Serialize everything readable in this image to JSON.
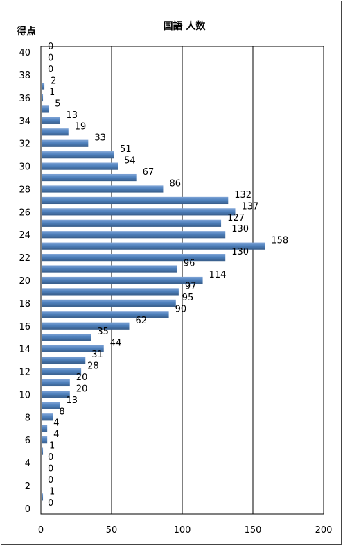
{
  "chart_data": {
    "type": "bar",
    "orientation": "horizontal",
    "title": "国語 人数",
    "ylabel": "得点",
    "xlabel": "",
    "xlim": [
      0,
      200
    ],
    "x_ticks": [
      0,
      50,
      100,
      150,
      200
    ],
    "y_ticks": [
      0,
      2,
      4,
      6,
      8,
      10,
      12,
      14,
      16,
      18,
      20,
      22,
      24,
      26,
      28,
      30,
      32,
      34,
      36,
      38,
      40
    ],
    "grid": "vertical",
    "legend": "none",
    "bar_color": "#4f81bd",
    "categories": [
      0,
      1,
      2,
      3,
      4,
      5,
      6,
      7,
      8,
      9,
      10,
      11,
      12,
      13,
      14,
      15,
      16,
      17,
      18,
      19,
      20,
      21,
      22,
      23,
      24,
      25,
      26,
      27,
      28,
      29,
      30,
      31,
      32,
      33,
      34,
      35,
      36,
      37,
      38,
      39,
      40
    ],
    "values": [
      0,
      1,
      0,
      0,
      0,
      1,
      4,
      4,
      8,
      13,
      20,
      20,
      28,
      31,
      44,
      35,
      62,
      90,
      95,
      97,
      114,
      96,
      130,
      158,
      130,
      127,
      137,
      132,
      86,
      67,
      54,
      51,
      33,
      19,
      13,
      5,
      1,
      2,
      0,
      0,
      0
    ]
  }
}
